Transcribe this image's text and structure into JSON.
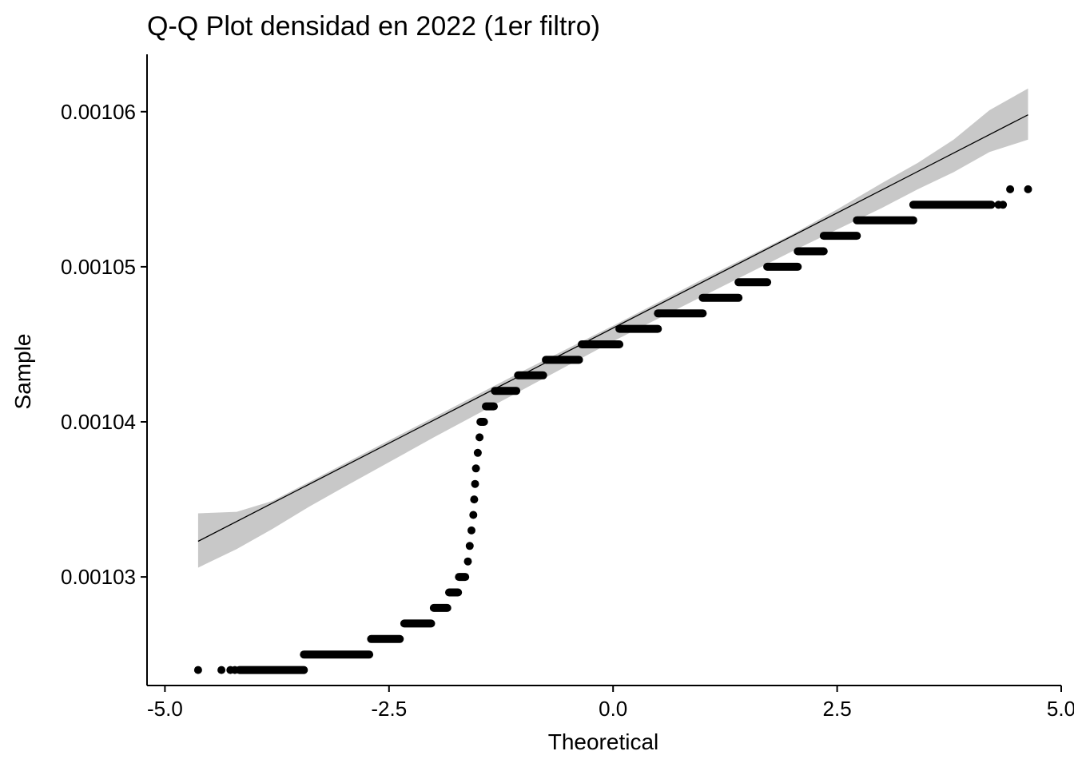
{
  "chart_data": {
    "type": "scatter",
    "title": "Q-Q Plot densidad en 2022 (1er filtro)",
    "xlabel": "Theoretical",
    "ylabel": "Sample",
    "xlim": [
      -5.2,
      5.0
    ],
    "ylim": [
      0.001023,
      0.0010637
    ],
    "x_ticks": [
      -5.0,
      -2.5,
      0.0,
      2.5,
      5.0
    ],
    "x_tick_labels": [
      "-5.0",
      "-2.5",
      "0.0",
      "2.5",
      "5.0"
    ],
    "y_ticks": [
      0.00103,
      0.00104,
      0.00105,
      0.00106
    ],
    "y_tick_labels": [
      "0.00103",
      "0.00104",
      "0.00105",
      "0.00106"
    ],
    "grid": false,
    "legend": "none",
    "reference_line": {
      "x": [
        -4.63,
        4.63
      ],
      "y": [
        0.0010323,
        0.0010598
      ]
    },
    "confidence_band": {
      "x": [
        -4.63,
        -4.2,
        -3.8,
        -3.4,
        -3.0,
        -2.5,
        -2.0,
        -1.0,
        0.0,
        1.0,
        2.0,
        2.5,
        3.0,
        3.4,
        3.8,
        4.2,
        4.63
      ],
      "upper": [
        0.0010341,
        0.0010342,
        0.0010349,
        0.0010361,
        0.0010373,
        0.0010388,
        0.0010403,
        0.0010433,
        0.0010462,
        0.0010492,
        0.0010521,
        0.0010537,
        0.0010554,
        0.0010567,
        0.0010582,
        0.0010601,
        0.0010615
      ],
      "lower": [
        0.0010306,
        0.0010318,
        0.0010331,
        0.0010345,
        0.0010358,
        0.0010374,
        0.001039,
        0.0010421,
        0.0010452,
        0.0010481,
        0.001051,
        0.0010524,
        0.0010538,
        0.001055,
        0.0010561,
        0.0010574,
        0.0010582
      ]
    },
    "point_groups": [
      {
        "y": 0.001024,
        "x": [
          -4.63,
          -4.37,
          -4.27,
          -4.22
        ]
      },
      {
        "y": 0.001024,
        "x_range": [
          -4.17,
          -3.45
        ]
      },
      {
        "y": 0.001025,
        "x_range": [
          -3.45,
          -2.72
        ]
      },
      {
        "y": 0.001026,
        "x_range": [
          -2.7,
          -2.38
        ]
      },
      {
        "y": 0.001027,
        "x_range": [
          -2.33,
          -2.03
        ]
      },
      {
        "y": 0.001028,
        "x_range": [
          -2.0,
          -1.85
        ]
      },
      {
        "y": 0.001029,
        "x_range": [
          -1.83,
          -1.73
        ]
      },
      {
        "y": 0.00103,
        "x_range": [
          -1.72,
          -1.65
        ]
      },
      {
        "y": 0.001031,
        "x": [
          -1.62
        ]
      },
      {
        "y": 0.001032,
        "x": [
          -1.6
        ]
      },
      {
        "y": 0.001033,
        "x": [
          -1.58
        ]
      },
      {
        "y": 0.001034,
        "x": [
          -1.56
        ]
      },
      {
        "y": 0.001035,
        "x": [
          -1.55
        ]
      },
      {
        "y": 0.001036,
        "x": [
          -1.54
        ]
      },
      {
        "y": 0.001037,
        "x": [
          -1.53
        ]
      },
      {
        "y": 0.001038,
        "x": [
          -1.51
        ]
      },
      {
        "y": 0.001039,
        "x": [
          -1.49
        ]
      },
      {
        "y": 0.00104,
        "x_range": [
          -1.48,
          -1.44
        ]
      },
      {
        "y": 0.001041,
        "x_range": [
          -1.42,
          -1.33
        ]
      },
      {
        "y": 0.001042,
        "x_range": [
          -1.32,
          -1.08
        ]
      },
      {
        "y": 0.001043,
        "x_range": [
          -1.06,
          -0.78
        ]
      },
      {
        "y": 0.001044,
        "x_range": [
          -0.75,
          -0.38
        ]
      },
      {
        "y": 0.001045,
        "x_range": [
          -0.35,
          0.07
        ]
      },
      {
        "y": 0.001046,
        "x_range": [
          0.07,
          0.5
        ]
      },
      {
        "y": 0.001047,
        "x_range": [
          0.5,
          1.0
        ]
      },
      {
        "y": 0.001048,
        "x_range": [
          1.0,
          1.4
        ]
      },
      {
        "y": 0.001049,
        "x_range": [
          1.4,
          1.72
        ]
      },
      {
        "y": 0.00105,
        "x_range": [
          1.72,
          2.06
        ]
      },
      {
        "y": 0.001051,
        "x_range": [
          2.06,
          2.35
        ]
      },
      {
        "y": 0.001052,
        "x_range": [
          2.35,
          2.72
        ]
      },
      {
        "y": 0.001053,
        "x_range": [
          2.72,
          3.35
        ]
      },
      {
        "y": 0.001054,
        "x_range": [
          3.35,
          4.22
        ]
      },
      {
        "y": 0.001054,
        "x": [
          4.3,
          4.35
        ]
      },
      {
        "y": 0.001055,
        "x": [
          4.43,
          4.63
        ]
      }
    ]
  }
}
